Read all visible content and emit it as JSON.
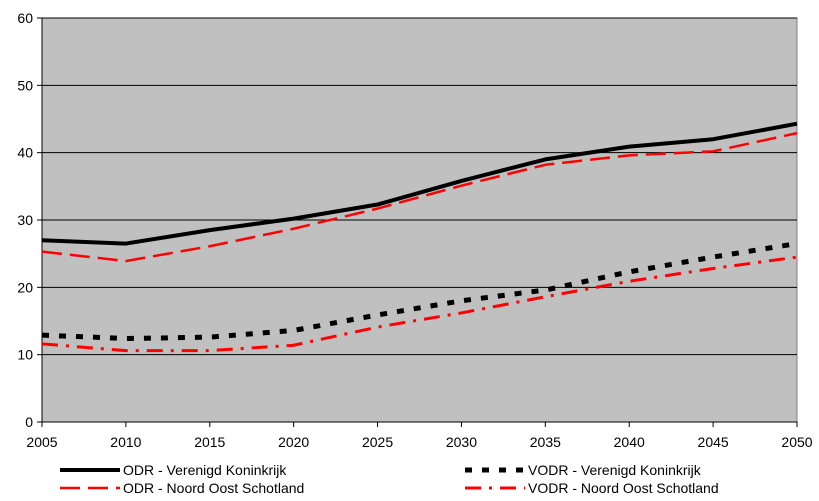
{
  "chart_data": {
    "type": "line",
    "title": "",
    "xlabel": "",
    "ylabel": "",
    "x": [
      2005,
      2010,
      2015,
      2020,
      2025,
      2030,
      2035,
      2040,
      2045,
      2050
    ],
    "xlim": [
      2005,
      2050
    ],
    "ylim": [
      0,
      60
    ],
    "yticks": [
      0,
      10,
      20,
      30,
      40,
      50,
      60
    ],
    "grid": "horizontal",
    "plot_background": "#c0c0c0",
    "legend_position": "bottom",
    "series": [
      {
        "name": "ODR - Verenigd Koninkrijk",
        "values": [
          27.0,
          26.5,
          28.5,
          30.2,
          32.3,
          35.8,
          39.0,
          40.9,
          42.0,
          44.3
        ],
        "color": "#000000",
        "style": "solid"
      },
      {
        "name": "ODR - Noord Oost Schotland",
        "values": [
          25.3,
          23.9,
          26.1,
          28.7,
          31.7,
          35.1,
          38.2,
          39.6,
          40.2,
          42.9
        ],
        "color": "#ff0000",
        "style": "dashed"
      },
      {
        "name": "VODR - Verenigd Koninkrijk",
        "values": [
          12.9,
          12.4,
          12.6,
          13.6,
          15.9,
          18.0,
          19.6,
          22.3,
          24.5,
          26.5
        ],
        "color": "#000000",
        "style": "square-dot"
      },
      {
        "name": "VODR - Noord Oost Schotland",
        "values": [
          11.6,
          10.6,
          10.6,
          11.4,
          14.1,
          16.2,
          18.6,
          20.9,
          22.8,
          24.5
        ],
        "color": "#ff0000",
        "style": "dash-dot"
      }
    ]
  }
}
